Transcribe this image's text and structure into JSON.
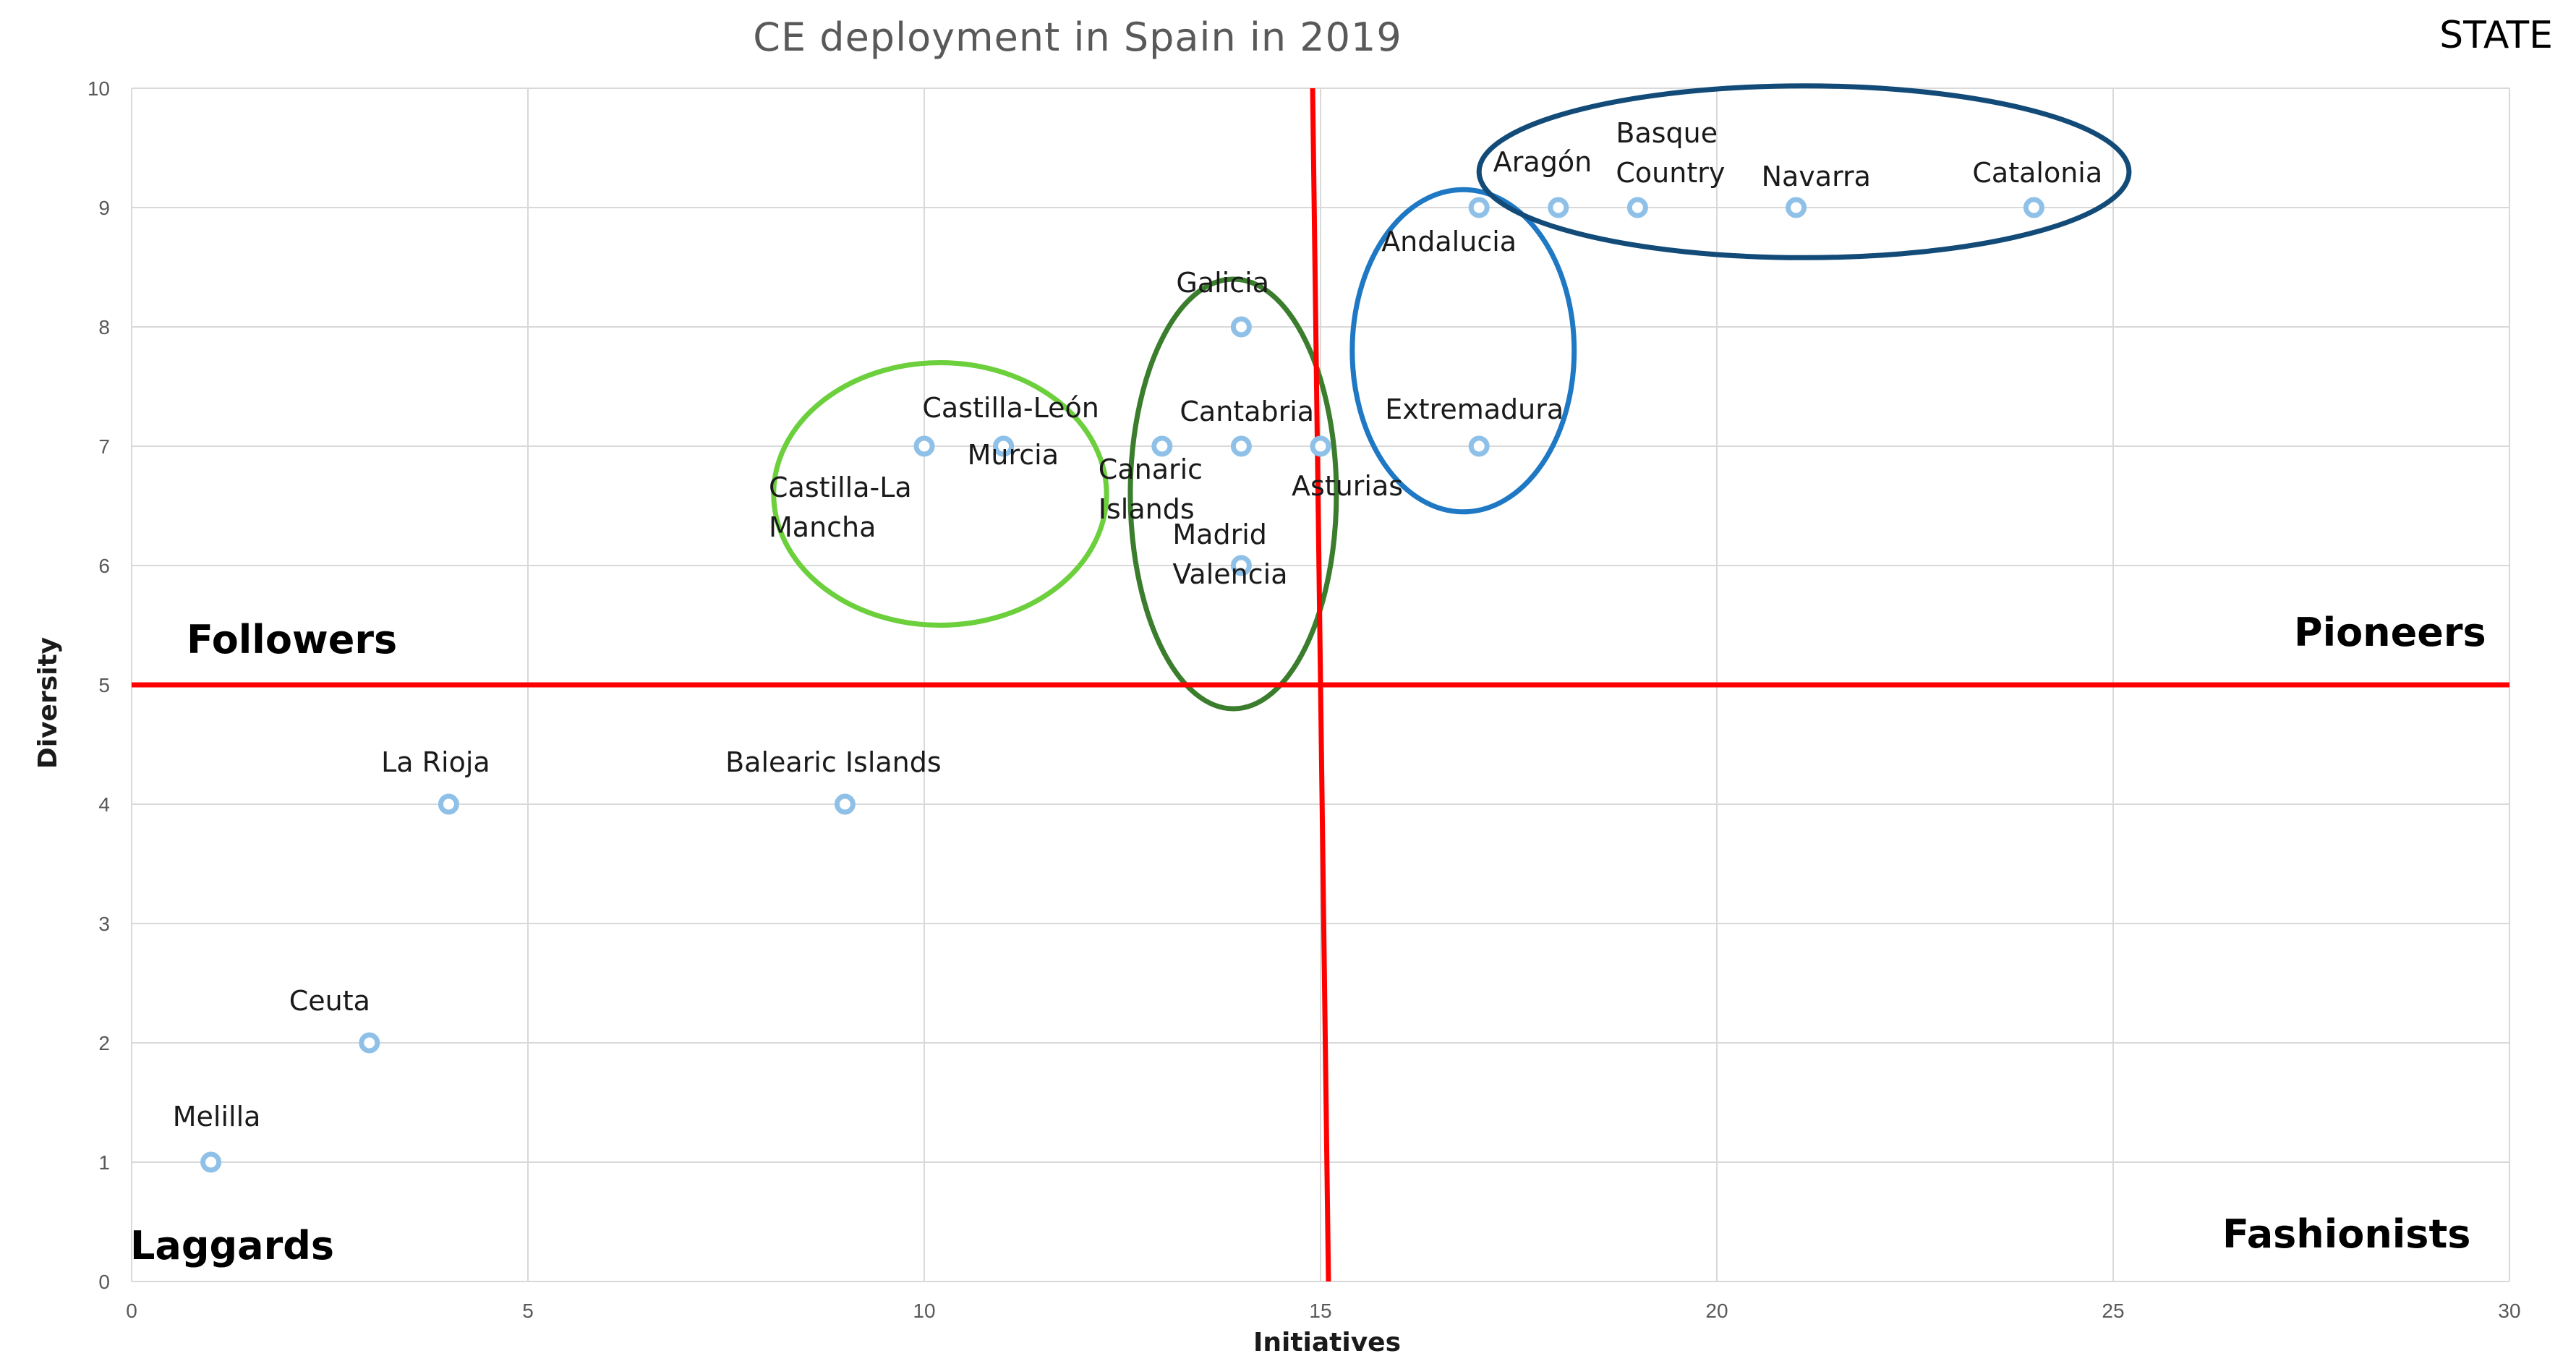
{
  "chart_data": {
    "type": "scatter",
    "title": "CE deployment  in Spain in 2019",
    "corner_label": "STATE",
    "xlabel": "Initiatives",
    "ylabel": "Diversity",
    "xlim": [
      0,
      30
    ],
    "ylim": [
      0,
      10
    ],
    "xticks": [
      0,
      5,
      10,
      15,
      20,
      25,
      30
    ],
    "yticks": [
      0,
      1,
      2,
      3,
      4,
      5,
      6,
      7,
      8,
      9,
      10
    ],
    "grid": true,
    "points": [
      {
        "label": [
          "Melilla"
        ],
        "x": 1,
        "y": 1
      },
      {
        "label": [
          "Ceuta"
        ],
        "x": 3,
        "y": 2
      },
      {
        "label": [
          "La Rioja"
        ],
        "x": 4,
        "y": 4
      },
      {
        "label": [
          "Balearic Islands"
        ],
        "x": 9,
        "y": 4
      },
      {
        "label": [
          "Castilla-La",
          "Mancha"
        ],
        "x": 10,
        "y": 7
      },
      {
        "label": [
          "Castilla-León"
        ],
        "x": 11,
        "y": 7
      },
      {
        "label": [
          "Murcia"
        ],
        "x": 11,
        "y": 7
      },
      {
        "label": [
          "Canaric",
          "Islands"
        ],
        "x": 13,
        "y": 7
      },
      {
        "label": [
          "Cantabria"
        ],
        "x": 14,
        "y": 7
      },
      {
        "label": [
          "Galicia"
        ],
        "x": 14,
        "y": 8
      },
      {
        "label": [
          "Madrid",
          "Valencia"
        ],
        "x": 14,
        "y": 6
      },
      {
        "label": [
          "Asturias"
        ],
        "x": 15,
        "y": 7
      },
      {
        "label": [
          "Extremadura"
        ],
        "x": 17,
        "y": 7
      },
      {
        "label": [
          "Andalucia"
        ],
        "x": 17,
        "y": 9
      },
      {
        "label": [
          "Aragón"
        ],
        "x": 18,
        "y": 9
      },
      {
        "label": [
          "Basque",
          "Country"
        ],
        "x": 19,
        "y": 9
      },
      {
        "label": [
          "Navarra"
        ],
        "x": 21,
        "y": 9
      },
      {
        "label": [
          "Catalonia"
        ],
        "x": 24,
        "y": 9
      }
    ],
    "divider_lines": {
      "horizontal_y": 5,
      "vertical": {
        "x_top": 14.9,
        "y_top": 10,
        "x_bottom": 15.1,
        "y_bottom": 0
      },
      "color": "#ff0000"
    },
    "quadrants": {
      "top_left": "Followers",
      "top_right": "Pioneers",
      "bottom_left": "Laggards",
      "bottom_right": "Fashionists"
    },
    "clusters": [
      {
        "name": "followers-group",
        "center": [
          10.2,
          6.6
        ],
        "radius": [
          2.1,
          1.1
        ],
        "color": "#6ccf3c"
      },
      {
        "name": "center-group",
        "center": [
          13.9,
          6.6
        ],
        "radius": [
          1.3,
          1.8
        ],
        "color": "#3a7d2c"
      },
      {
        "name": "andalucia-extremadura-group",
        "center": [
          16.8,
          7.8
        ],
        "radius": [
          1.4,
          1.35
        ],
        "color": "#1f78c4"
      },
      {
        "name": "pioneers-group",
        "center": [
          21.1,
          9.3
        ],
        "radius": [
          4.1,
          0.72
        ],
        "color": "#134b78"
      }
    ],
    "colors": {
      "marker": "#8fc1e8",
      "grid": "#d9d9d9"
    }
  }
}
